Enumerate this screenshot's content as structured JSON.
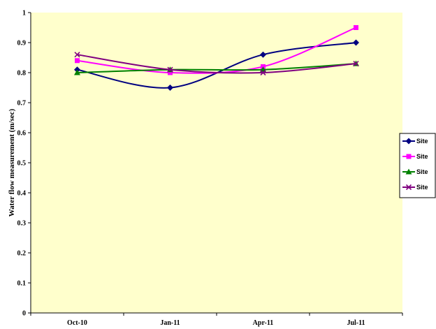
{
  "chart_data": {
    "type": "line",
    "title": "",
    "xlabel": "",
    "ylabel": "Water flow measurement (m/sec)",
    "categories": [
      "Oct-10",
      "Jan-11",
      "Apr-11",
      "Jul-11"
    ],
    "ylim": [
      0,
      1
    ],
    "yticks": [
      0,
      0.1,
      0.2,
      0.3,
      0.4,
      0.5,
      0.6,
      0.7,
      0.8,
      0.9,
      1
    ],
    "ytick_labels": [
      "0",
      "0.1",
      "0.2",
      "0.3",
      "0.4",
      "0.5",
      "0.6",
      "0.7",
      "0.8",
      "0.9",
      "1"
    ],
    "grid": false,
    "legend_position": "right",
    "series": [
      {
        "name": "Site",
        "color": "#000080",
        "marker": "diamond",
        "values": [
          0.81,
          0.75,
          0.86,
          0.9
        ]
      },
      {
        "name": "Site",
        "color": "#ff00ff",
        "marker": "square",
        "values": [
          0.84,
          0.8,
          0.82,
          0.95
        ]
      },
      {
        "name": "Site",
        "color": "#008000",
        "marker": "triangle",
        "values": [
          0.8,
          0.81,
          0.81,
          0.83
        ]
      },
      {
        "name": "Site",
        "color": "#800080",
        "marker": "x",
        "values": [
          0.86,
          0.81,
          0.8,
          0.83
        ]
      }
    ],
    "plot_area_color": "#ffffcc"
  }
}
